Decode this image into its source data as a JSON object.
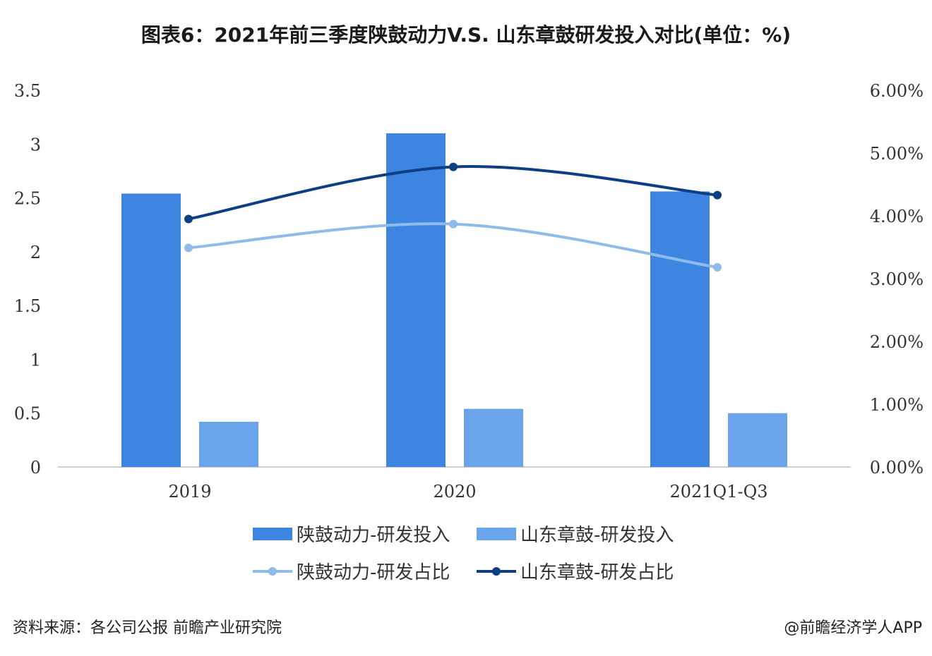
{
  "chart_data": {
    "type": "bar",
    "title": "图表6：2021年前三季度陕鼓动力V.S. 山东章鼓研发投入对比(单位：%)",
    "categories": [
      "2019",
      "2020",
      "2021Q1-Q3"
    ],
    "series": [
      {
        "name": "陕鼓动力-研发投入",
        "type": "bar",
        "axis": "left",
        "color": "#3d85e0",
        "values": [
          2.54,
          3.1,
          2.56
        ]
      },
      {
        "name": "山东章鼓-研发投入",
        "type": "bar",
        "axis": "left",
        "color": "#6aa5ec",
        "values": [
          0.42,
          0.54,
          0.5
        ]
      },
      {
        "name": "陕鼓动力-研发占比",
        "type": "line",
        "axis": "right",
        "color": "#8fbbe8",
        "values": [
          3.49,
          3.87,
          3.18
        ]
      },
      {
        "name": "山东章鼓-研发占比",
        "type": "line",
        "axis": "right",
        "color": "#0d3f82",
        "values": [
          3.95,
          4.78,
          4.33
        ]
      }
    ],
    "y_left": {
      "range": [
        0,
        3.5
      ],
      "ticks": [
        "0",
        "0.5",
        "1",
        "1.5",
        "2",
        "2.5",
        "3",
        "3.5"
      ]
    },
    "y_right": {
      "range": [
        0,
        6
      ],
      "ticks": [
        "0.00%",
        "1.00%",
        "2.00%",
        "3.00%",
        "4.00%",
        "5.00%",
        "6.00%"
      ]
    },
    "xlabel": "",
    "ylabel": "",
    "grid": false,
    "legend_placement": "bottom"
  },
  "footer": {
    "source": "资料来源：各公司公报 前瞻产业研究院",
    "credit": "@前瞻经济学人APP"
  }
}
